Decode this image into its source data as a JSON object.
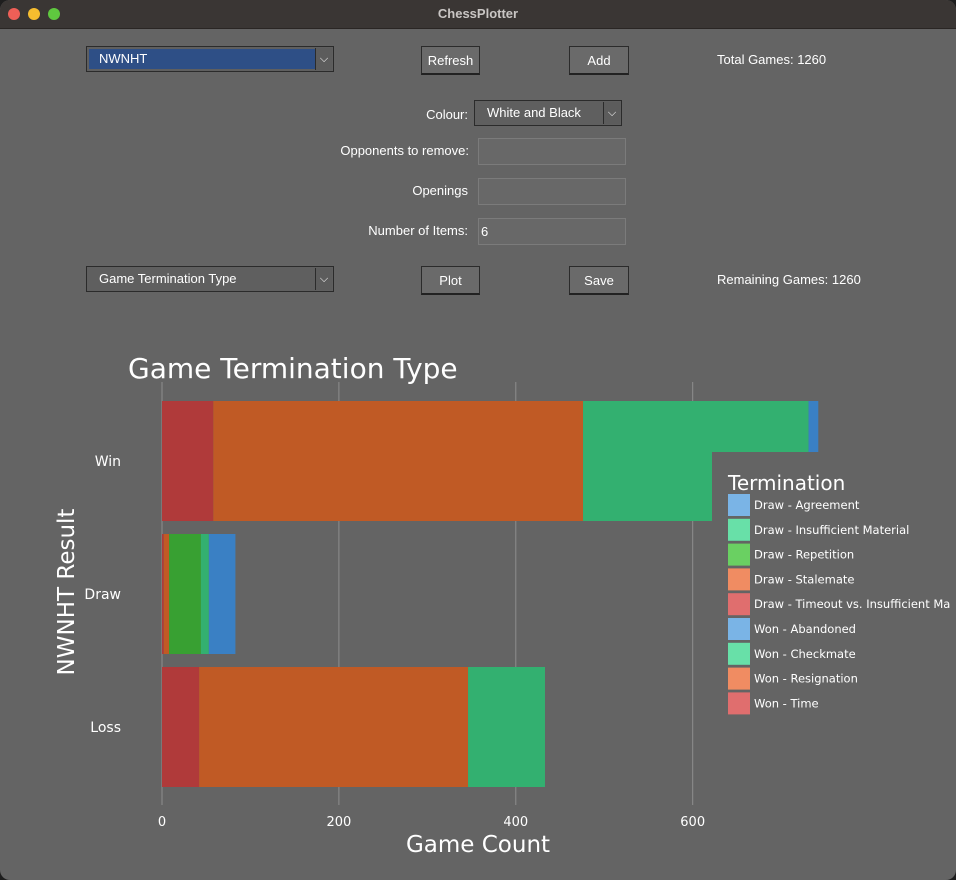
{
  "window": {
    "title": "ChessPlotter"
  },
  "controls": {
    "player_select": "NWNHT",
    "refresh_label": "Refresh",
    "add_label": "Add",
    "total_games": "Total Games: 1260",
    "colour_label": "Colour:",
    "colour_select": "White and Black",
    "opponents_label": "Opponents to remove:",
    "opponents_value": "",
    "openings_label": "Openings",
    "openings_value": "",
    "items_label": "Number of Items:",
    "items_value": "6",
    "plot_type_select": "Game Termination Type",
    "plot_label": "Plot",
    "save_label": "Save",
    "remaining_games": "Remaining Games: 1260"
  },
  "chart_data": {
    "type": "bar",
    "orientation": "horizontal",
    "stacked": true,
    "title": "Game Termination Type",
    "xlabel": "Game Count",
    "ylabel": "NWNHT Result",
    "categories": [
      "Win",
      "Draw",
      "Loss"
    ],
    "xticks": [
      "0",
      "200",
      "400",
      "600"
    ],
    "xlim": [
      0,
      740
    ],
    "grid": "vertical",
    "legend_title": "Termination",
    "legend_position": "right",
    "legend": [
      {
        "label": "Draw - Agreement",
        "color": "#3a80c4"
      },
      {
        "label": "Draw - Insufficient Material",
        "color": "#33b070"
      },
      {
        "label": "Draw - Repetition",
        "color": "#38a032"
      },
      {
        "label": "Draw - Stalemate",
        "color": "#c05a25"
      },
      {
        "label": "Draw - Timeout vs. Insufficient Ma",
        "color": "#b03a3a"
      },
      {
        "label": "Won - Abandoned",
        "color": "#3a80c4"
      },
      {
        "label": "Won - Checkmate",
        "color": "#33b070"
      },
      {
        "label": "Won - Resignation",
        "color": "#c05a25"
      },
      {
        "label": "Won - Time",
        "color": "#b03a3a"
      }
    ],
    "series": [
      {
        "name": "Won - Time",
        "values": [
          58,
          0,
          42
        ],
        "color": "#b03a3a"
      },
      {
        "name": "Won - Resignation",
        "values": [
          418,
          0,
          304
        ],
        "color": "#c05a25"
      },
      {
        "name": "Won - Checkmate",
        "values": [
          255,
          0,
          87
        ],
        "color": "#33b070"
      },
      {
        "name": "Won - Abandoned",
        "values": [
          11,
          0,
          0
        ],
        "color": "#3a80c4"
      },
      {
        "name": "Draw - Timeout vs. Insufficient Ma",
        "values": [
          0,
          2,
          0
        ],
        "color": "#b03a3a"
      },
      {
        "name": "Draw - Stalemate",
        "values": [
          0,
          6,
          0
        ],
        "color": "#c05a25"
      },
      {
        "name": "Draw - Repetition",
        "values": [
          0,
          36,
          0
        ],
        "color": "#38a032"
      },
      {
        "name": "Draw - Insufficient Material",
        "values": [
          0,
          9,
          0
        ],
        "color": "#33b070"
      },
      {
        "name": "Draw - Agreement",
        "values": [
          0,
          30,
          0
        ],
        "color": "#3a80c4"
      }
    ]
  }
}
